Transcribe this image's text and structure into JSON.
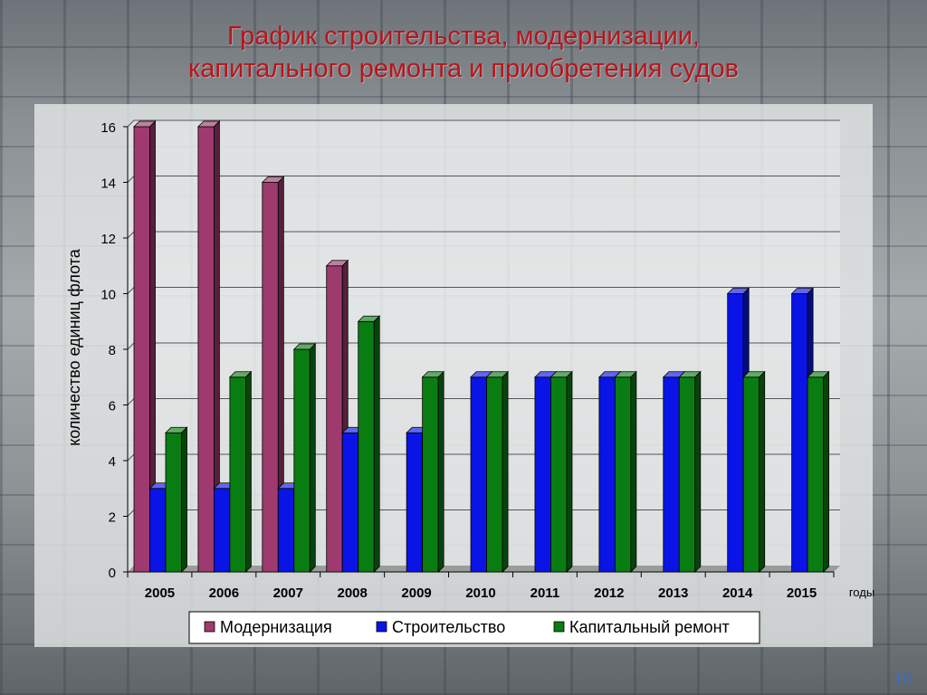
{
  "title_line1": "График строительства, модернизации,",
  "title_line2": "капитального ремонта и приобретения судов",
  "slide_number": "16",
  "chart_data": {
    "type": "bar",
    "categories": [
      "2005",
      "2006",
      "2007",
      "2008",
      "2009",
      "2010",
      "2011",
      "2012",
      "2013",
      "2014",
      "2015"
    ],
    "series": [
      {
        "name": "Модернизация",
        "values": [
          16,
          16,
          14,
          11,
          0,
          0,
          0,
          0,
          0,
          0,
          0
        ],
        "color": "#9e3a6e"
      },
      {
        "name": "Строительство",
        "values": [
          3,
          3,
          3,
          5,
          5,
          7,
          7,
          7,
          7,
          10,
          10
        ],
        "color": "#0a14e6"
      },
      {
        "name": "Капитальный ремонт",
        "values": [
          5,
          7,
          8,
          9,
          7,
          7,
          7,
          7,
          7,
          7,
          7
        ],
        "color": "#0a7d12"
      }
    ],
    "ylabel": "количество единиц флота",
    "xlabel": "годы",
    "ylim": [
      0,
      16
    ],
    "yticks": [
      "0",
      "2",
      "4",
      "6",
      "8",
      "10",
      "12",
      "14",
      "16"
    ],
    "grid": true,
    "legend": "bottom"
  }
}
